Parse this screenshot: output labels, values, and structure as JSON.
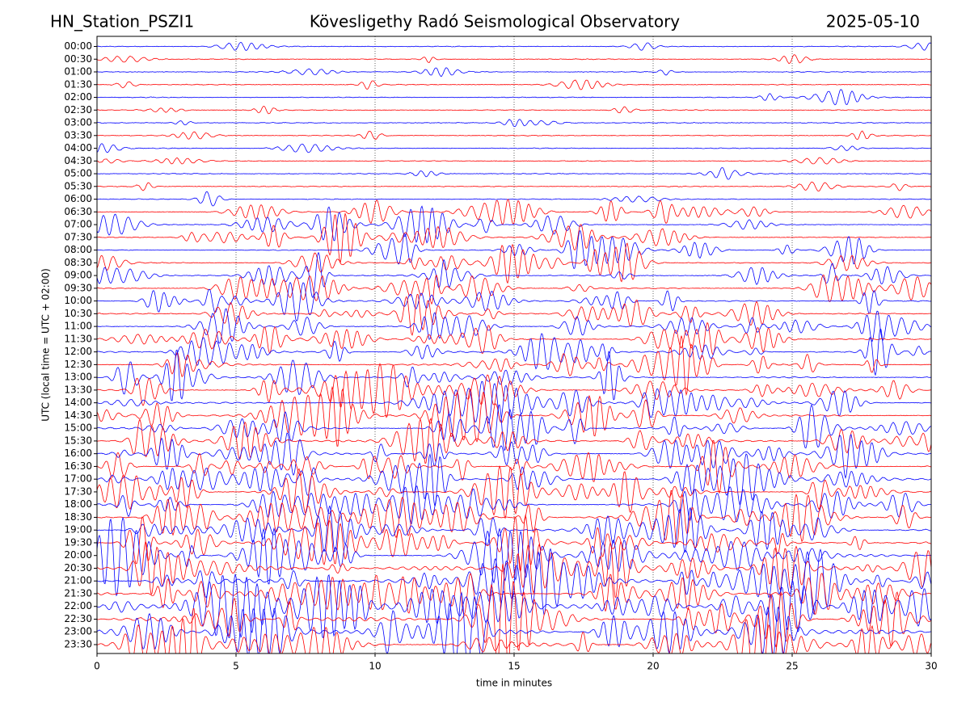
{
  "chart_data": {
    "type": "helicorder",
    "station": "HN_Station_PSZI1",
    "title": "Kövesligethy Radó Seismological Observatory",
    "date": "2025-05-10",
    "xlabel": "time in minutes",
    "ylabel": "UTC (local time = UTC + 02:00)",
    "categories": [
      "00:00",
      "00:30",
      "01:00",
      "01:30",
      "02:00",
      "02:30",
      "03:00",
      "03:30",
      "04:00",
      "04:30",
      "05:00",
      "05:30",
      "06:00",
      "06:30",
      "07:00",
      "07:30",
      "08:00",
      "08:30",
      "09:00",
      "09:30",
      "10:00",
      "10:30",
      "11:00",
      "11:30",
      "12:00",
      "12:30",
      "13:00",
      "13:30",
      "14:00",
      "14:30",
      "15:00",
      "15:30",
      "16:00",
      "16:30",
      "17:00",
      "17:30",
      "18:00",
      "18:30",
      "19:00",
      "19:30",
      "20:00",
      "20:30",
      "21:00",
      "21:30",
      "22:00",
      "22:30",
      "23:00",
      "23:30"
    ],
    "colors": [
      "#0000ff",
      "#ff0000"
    ],
    "xlim": [
      0,
      30
    ],
    "xticks": [
      0,
      5,
      10,
      15,
      20,
      25,
      30
    ],
    "grid": true
  }
}
